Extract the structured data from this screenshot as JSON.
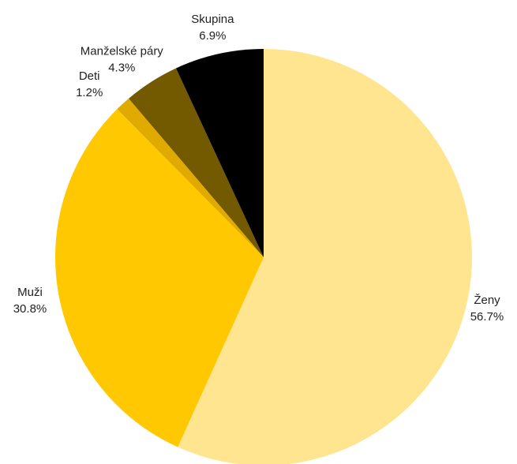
{
  "chart_data": {
    "type": "pie",
    "title": "",
    "start_angle_deg": 0,
    "direction": "clockwise",
    "slices": [
      {
        "label": "Ženy",
        "value": 56.7,
        "value_label": "56.7%",
        "color": "#FFE58F"
      },
      {
        "label": "Muži",
        "value": 30.8,
        "value_label": "30.8%",
        "color": "#FFC800"
      },
      {
        "label": "Deti",
        "value": 1.2,
        "value_label": "1.2%",
        "color": "#E0AA00"
      },
      {
        "label": "Manželské páry",
        "value": 4.3,
        "value_label": "4.3%",
        "color": "#735900"
      },
      {
        "label": "Skupina",
        "value": 6.9,
        "value_label": "6.9%",
        "color": "#000000"
      }
    ]
  }
}
